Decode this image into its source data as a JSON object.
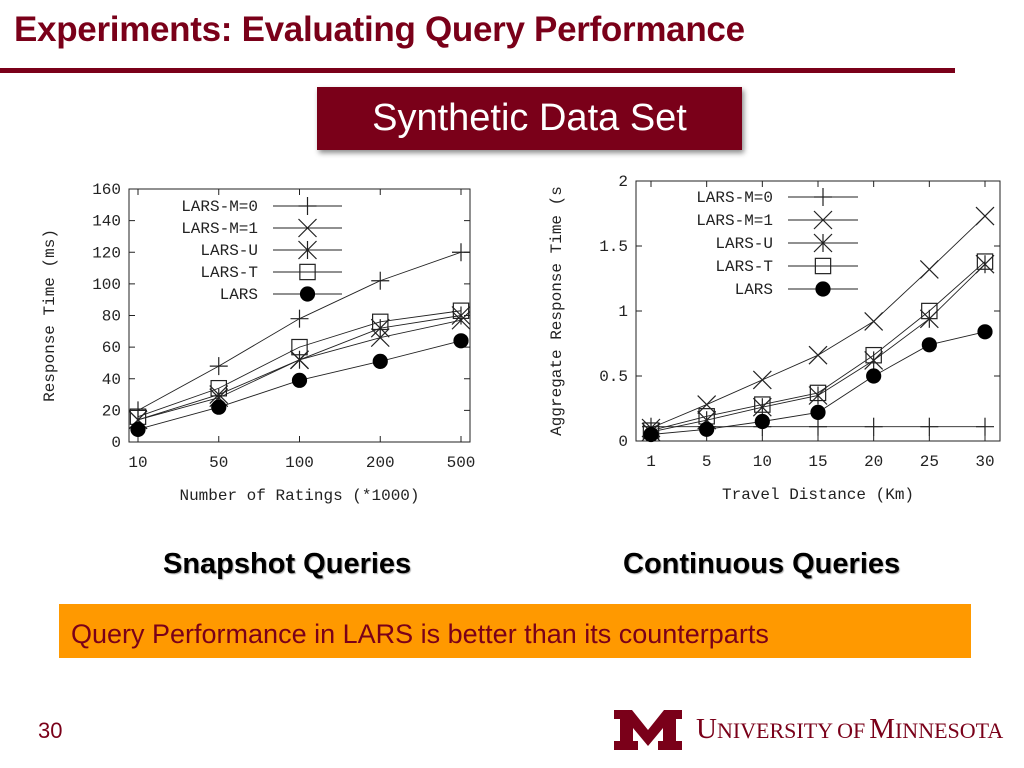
{
  "slide": {
    "title": "Experiments: Evaluating Query Performance",
    "subtitle": "Synthetic Data Set",
    "caption_left": "Snapshot Queries",
    "caption_right": "Continuous Queries",
    "conclusion": "Query Performance in LARS is better than its counterparts",
    "page_number": "30",
    "logo_text": "University of Minnesota"
  },
  "colors": {
    "maroon": "#7a0019",
    "gold": "#ff9900"
  },
  "chart_data": [
    {
      "type": "line",
      "xlabel": "Number of Ratings (*1000)",
      "ylabel": "Response Time (ms)",
      "categories": [
        "10",
        "50",
        "100",
        "200",
        "500"
      ],
      "ylim": [
        0,
        160
      ],
      "yticks": [
        "0",
        "20",
        "40",
        "60",
        "80",
        "100",
        "120",
        "140",
        "160"
      ],
      "legend": "top-left",
      "grid": false,
      "series": [
        {
          "name": "LARS-M=0",
          "marker": "plus",
          "values": [
            20,
            48,
            78,
            102,
            120
          ]
        },
        {
          "name": "LARS-M=1",
          "marker": "cross",
          "values": [
            14,
            30,
            52,
            66,
            77
          ]
        },
        {
          "name": "LARS-U",
          "marker": "star",
          "values": [
            14,
            28,
            52,
            72,
            80
          ]
        },
        {
          "name": "LARS-T",
          "marker": "square",
          "values": [
            16,
            34,
            60,
            76,
            83
          ]
        },
        {
          "name": "LARS",
          "marker": "circle",
          "values": [
            8,
            22,
            39,
            51,
            64
          ]
        }
      ]
    },
    {
      "type": "line",
      "xlabel": "Travel Distance (Km)",
      "ylabel": "Aggregate Response Time (s",
      "categories": [
        "1",
        "5",
        "10",
        "15",
        "20",
        "25",
        "30"
      ],
      "ylim": [
        0,
        2
      ],
      "yticks": [
        "0",
        "0.5",
        "1",
        "1.5",
        "2"
      ],
      "legend": "top-left",
      "grid": false,
      "series": [
        {
          "name": "LARS-M=0",
          "marker": "plus",
          "values": [
            0.11,
            0.11,
            0.11,
            0.11,
            0.11,
            0.11,
            0.11
          ]
        },
        {
          "name": "LARS-M=1",
          "marker": "cross",
          "values": [
            0.1,
            0.28,
            0.47,
            0.66,
            0.92,
            1.32,
            1.73
          ]
        },
        {
          "name": "LARS-U",
          "marker": "star",
          "values": [
            0.07,
            0.16,
            0.26,
            0.35,
            0.62,
            0.94,
            1.36
          ]
        },
        {
          "name": "LARS-T",
          "marker": "square",
          "values": [
            0.08,
            0.19,
            0.28,
            0.37,
            0.66,
            1.0,
            1.38
          ]
        },
        {
          "name": "LARS",
          "marker": "circle",
          "values": [
            0.05,
            0.09,
            0.15,
            0.22,
            0.5,
            0.74,
            0.84
          ]
        }
      ]
    }
  ]
}
